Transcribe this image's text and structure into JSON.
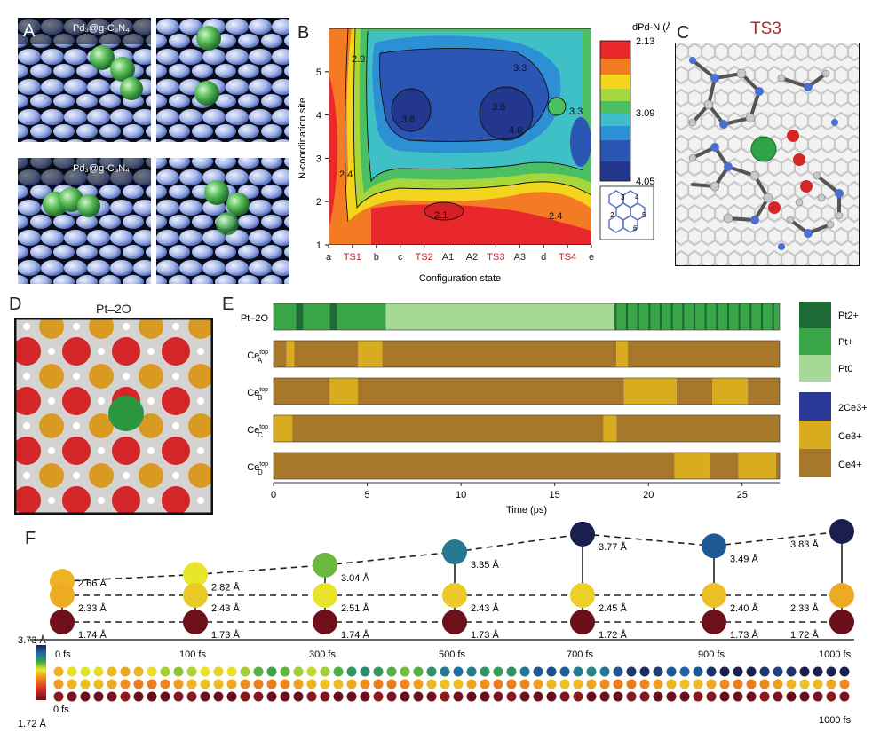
{
  "panels": {
    "A": {
      "letter": "A",
      "top_label": "Pd₃@g-C₃N₄",
      "bottom_label": "Pd₃@g-C₃N₄"
    },
    "B": {
      "letter": "B",
      "legend_title": "dPd-N (Å)",
      "legend_ticks": [
        "2.13",
        "3.09",
        "4.05"
      ],
      "inset_sites": [
        "1",
        "2",
        "3",
        "4",
        "5",
        "6"
      ]
    },
    "C": {
      "letter": "C",
      "title": "TS3"
    },
    "D": {
      "letter": "D",
      "title": "Pt–2O"
    },
    "E": {
      "letter": "E",
      "rows": [
        "Pt–2O",
        "Ce",
        "Ce",
        "Ce",
        "Ce"
      ],
      "row_sup": [
        "",
        "top",
        "top",
        "top",
        "top"
      ],
      "row_sub": [
        "",
        "A",
        "B",
        "C",
        "D"
      ],
      "legend_top": [
        "Pt2+",
        "Pt+",
        "Pt0"
      ],
      "legend_bottom": [
        "2Ce3+",
        "Ce3+",
        "Ce4+"
      ],
      "colors": {
        "pt2": "#1d6a36",
        "pt1": "#3aa547",
        "pt0": "#a6d996",
        "ce2": "#2b3a98",
        "ce3": "#d9ac1f",
        "ce4": "#a8782a"
      }
    },
    "F": {
      "letter": "F",
      "time_labels": [
        "0 fs",
        "100 fs",
        "300 fs",
        "500 fs",
        "700 fs",
        "900 fs",
        "1000 fs"
      ],
      "top_dist": [
        "2.66 Å",
        "2.82 Å",
        "3.04 Å",
        "3.35 Å",
        "3.77 Å",
        "3.49 Å",
        "3.83 Å"
      ],
      "mid_dist": [
        "2.33 Å",
        "2.43 Å",
        "2.51 Å",
        "2.43 Å",
        "2.45 Å",
        "2.40 Å",
        "2.33 Å"
      ],
      "bot_dist": [
        "1.74 Å",
        "1.73 Å",
        "1.74 Å",
        "1.73 Å",
        "1.72 Å",
        "1.73 Å",
        "1.72 Å"
      ],
      "scale_max": "3.73 Å",
      "scale_min": "1.72 Å",
      "strip_start": "0 fs",
      "strip_end": "1000 fs"
    }
  },
  "chart_data": [
    {
      "type": "heatmap",
      "panel": "B",
      "title": "",
      "xlabel": "Configuration state",
      "ylabel": "N-coordination site",
      "x_categories": [
        "a",
        "TS1",
        "b",
        "c",
        "TS2",
        "A1",
        "A2",
        "TS3",
        "A3",
        "d",
        "TS4",
        "e"
      ],
      "x_highlight": [
        "TS1",
        "TS2",
        "TS3",
        "TS4"
      ],
      "y_ticks": [
        "1",
        "2",
        "3",
        "4",
        "5"
      ],
      "ylim": [
        1,
        6
      ],
      "colorbar_range": [
        2.13,
        4.05
      ],
      "contour_labels": [
        "2.9",
        "3.3",
        "3.8",
        "3.8",
        "4.0",
        "3.3",
        "2.4",
        "2.1",
        "2.4"
      ]
    },
    {
      "type": "bar",
      "panel": "E",
      "xlabel": "Time (ps)",
      "x_ticks": [
        "0",
        "5",
        "10",
        "15",
        "20",
        "25"
      ],
      "xlim": [
        0,
        27
      ],
      "series": [
        {
          "name": "Pt–2O",
          "segments": [
            [
              0,
              1.2,
              "pt1"
            ],
            [
              1.2,
              1.6,
              "pt2"
            ],
            [
              1.6,
              3.0,
              "pt1"
            ],
            [
              3.0,
              3.4,
              "pt2"
            ],
            [
              3.4,
              6.0,
              "pt1"
            ],
            [
              6.0,
              18.2,
              "pt0"
            ],
            [
              18.2,
              27,
              "pt2_mix"
            ]
          ]
        },
        {
          "name": "CeA top",
          "segments": [
            [
              0,
              0.7,
              "ce4"
            ],
            [
              0.7,
              1.1,
              "ce3"
            ],
            [
              1.1,
              4.5,
              "ce4"
            ],
            [
              4.5,
              5.8,
              "ce3"
            ],
            [
              5.8,
              18.3,
              "ce4"
            ],
            [
              18.3,
              18.9,
              "ce3"
            ],
            [
              18.9,
              27,
              "ce4"
            ]
          ]
        },
        {
          "name": "CeB top",
          "segments": [
            [
              0,
              3.0,
              "ce4"
            ],
            [
              3.0,
              4.5,
              "ce3"
            ],
            [
              4.5,
              18.7,
              "ce4"
            ],
            [
              18.7,
              21.5,
              "ce3"
            ],
            [
              21.5,
              23.4,
              "ce4"
            ],
            [
              23.4,
              25.3,
              "ce3"
            ],
            [
              25.3,
              27,
              "ce4"
            ]
          ]
        },
        {
          "name": "CeC top",
          "segments": [
            [
              0,
              1.0,
              "ce3"
            ],
            [
              1.0,
              17.6,
              "ce4"
            ],
            [
              17.6,
              18.3,
              "ce3"
            ],
            [
              18.3,
              27,
              "ce4"
            ]
          ]
        },
        {
          "name": "CeD top",
          "segments": [
            [
              0,
              21.4,
              "ce4"
            ],
            [
              21.4,
              23.3,
              "ce3"
            ],
            [
              23.3,
              24.8,
              "ce4"
            ],
            [
              24.8,
              26.8,
              "ce3"
            ],
            [
              26.8,
              27,
              "ce4"
            ]
          ]
        }
      ]
    },
    {
      "type": "line",
      "panel": "F",
      "x": [
        "0 fs",
        "100 fs",
        "300 fs",
        "500 fs",
        "700 fs",
        "900 fs",
        "1000 fs"
      ],
      "series": [
        {
          "name": "top",
          "values": [
            2.66,
            2.82,
            3.04,
            3.35,
            3.77,
            3.49,
            3.83
          ]
        },
        {
          "name": "middle",
          "values": [
            2.33,
            2.43,
            2.51,
            2.43,
            2.45,
            2.4,
            2.33
          ]
        },
        {
          "name": "bottom",
          "values": [
            1.74,
            1.73,
            1.74,
            1.73,
            1.72,
            1.73,
            1.72
          ]
        }
      ],
      "colorbar_range": [
        1.72,
        3.73
      ]
    }
  ]
}
